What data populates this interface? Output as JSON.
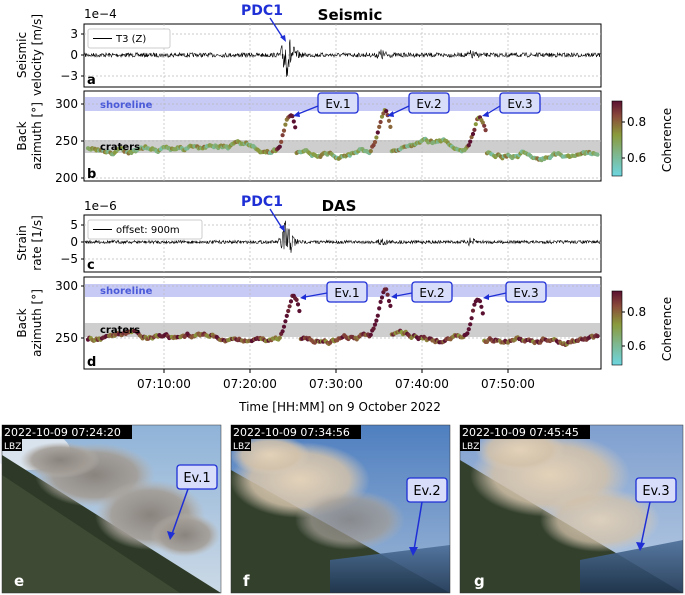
{
  "colors": {
    "accent_blue": "#1f2fd6",
    "shoreline_band": "#b9bdf2",
    "craters_band": "#c6c6c6",
    "signal": "#000000",
    "coherence_low": "#6ed6e0",
    "coherence_mid": "#8a9a3c",
    "coherence_high": "#5a1030"
  },
  "figure": {
    "x_axis_label": "Time [HH:MM] on 9 October 2022",
    "x_ticks": [
      "07:10:00",
      "07:20:00",
      "07:30:00",
      "07:40:00",
      "07:50:00"
    ],
    "colorbar_label": "Coherence",
    "colorbar_ticks": [
      "0.8",
      "0.6"
    ]
  },
  "panels": {
    "a": {
      "letter": "a",
      "title": "Seismic",
      "multiplier": "1e−4",
      "ylabel_1": "Seismic",
      "ylabel_2": "velocity [m/s]",
      "yticks": [
        "3",
        "0",
        "−3"
      ],
      "legend": "T3 (Z)",
      "event_label": "PDC1"
    },
    "b": {
      "letter": "b",
      "ylabel_1": "Back",
      "ylabel_2": "azimuth [°]",
      "yticks": [
        "300",
        "250",
        "200"
      ],
      "shoreline": "shoreline",
      "craters": "craters",
      "events": [
        "Ev.1",
        "Ev.2",
        "Ev.3"
      ]
    },
    "c": {
      "letter": "c",
      "title": "DAS",
      "multiplier": "1e−6",
      "ylabel_1": "Strain",
      "ylabel_2": "rate [1/s]",
      "yticks": [
        "5",
        "0",
        "−5"
      ],
      "legend": "offset: 900m",
      "event_label": "PDC1"
    },
    "d": {
      "letter": "d",
      "ylabel_1": "Back",
      "ylabel_2": "azimuth [°]",
      "yticks": [
        "300",
        "250"
      ],
      "shoreline": "shoreline",
      "craters": "craters",
      "events": [
        "Ev.1",
        "Ev.2",
        "Ev.3"
      ]
    }
  },
  "photos": [
    {
      "letter": "e",
      "timestamp": "2022-10-09 07:24:20",
      "station": "LBZ",
      "event": "Ev.1"
    },
    {
      "letter": "f",
      "timestamp": "2022-10-09 07:34:56",
      "station": "LBZ",
      "event": "Ev.2"
    },
    {
      "letter": "g",
      "timestamp": "2022-10-09 07:45:45",
      "station": "LBZ",
      "event": "Ev.3"
    }
  ],
  "chart_data": [
    {
      "type": "line",
      "panel": "a",
      "title": "Seismic",
      "ylabel": "Seismic velocity [m/s]",
      "y_multiplier": "1e-4",
      "ylim": [
        -4.5,
        4.5
      ],
      "xlim": [
        "07:00:00",
        "08:00:00"
      ],
      "series": [
        {
          "name": "T3 (Z)"
        }
      ],
      "annotations": [
        {
          "text": "PDC1",
          "x": "07:23:00"
        }
      ]
    },
    {
      "type": "scatter",
      "panel": "b",
      "ylabel": "Back azimuth [°]",
      "ylim": [
        198,
        312
      ],
      "shoreline_band": [
        285,
        297
      ],
      "craters_band": [
        238,
        251
      ],
      "events": [
        {
          "text": "Ev.1",
          "x": "07:24:00",
          "y": 292
        },
        {
          "text": "Ev.2",
          "x": "07:35:00",
          "y": 290
        },
        {
          "text": "Ev.3",
          "x": "07:46:00",
          "y": 289
        }
      ],
      "colorbar": {
        "label": "Coherence",
        "range": [
          0.5,
          0.9
        ]
      }
    },
    {
      "type": "line",
      "panel": "c",
      "title": "DAS",
      "ylabel": "Strain rate [1/s]",
      "y_multiplier": "1e-6",
      "ylim": [
        -7,
        7
      ],
      "xlim": [
        "07:00:00",
        "08:00:00"
      ],
      "series": [
        {
          "name": "offset: 900m"
        }
      ],
      "annotations": [
        {
          "text": "PDC1",
          "x": "07:23:00"
        }
      ]
    },
    {
      "type": "scatter",
      "panel": "d",
      "ylabel": "Back azimuth [°]",
      "ylim": [
        225,
        305
      ],
      "shoreline_band": [
        290,
        298
      ],
      "craters_band": [
        248,
        260
      ],
      "events": [
        {
          "text": "Ev.1",
          "x": "07:24:00",
          "y": 288
        },
        {
          "text": "Ev.2",
          "x": "07:35:00",
          "y": 290
        },
        {
          "text": "Ev.3",
          "x": "07:46:00",
          "y": 288
        }
      ],
      "colorbar": {
        "label": "Coherence",
        "range": [
          0.5,
          0.9
        ]
      }
    }
  ]
}
